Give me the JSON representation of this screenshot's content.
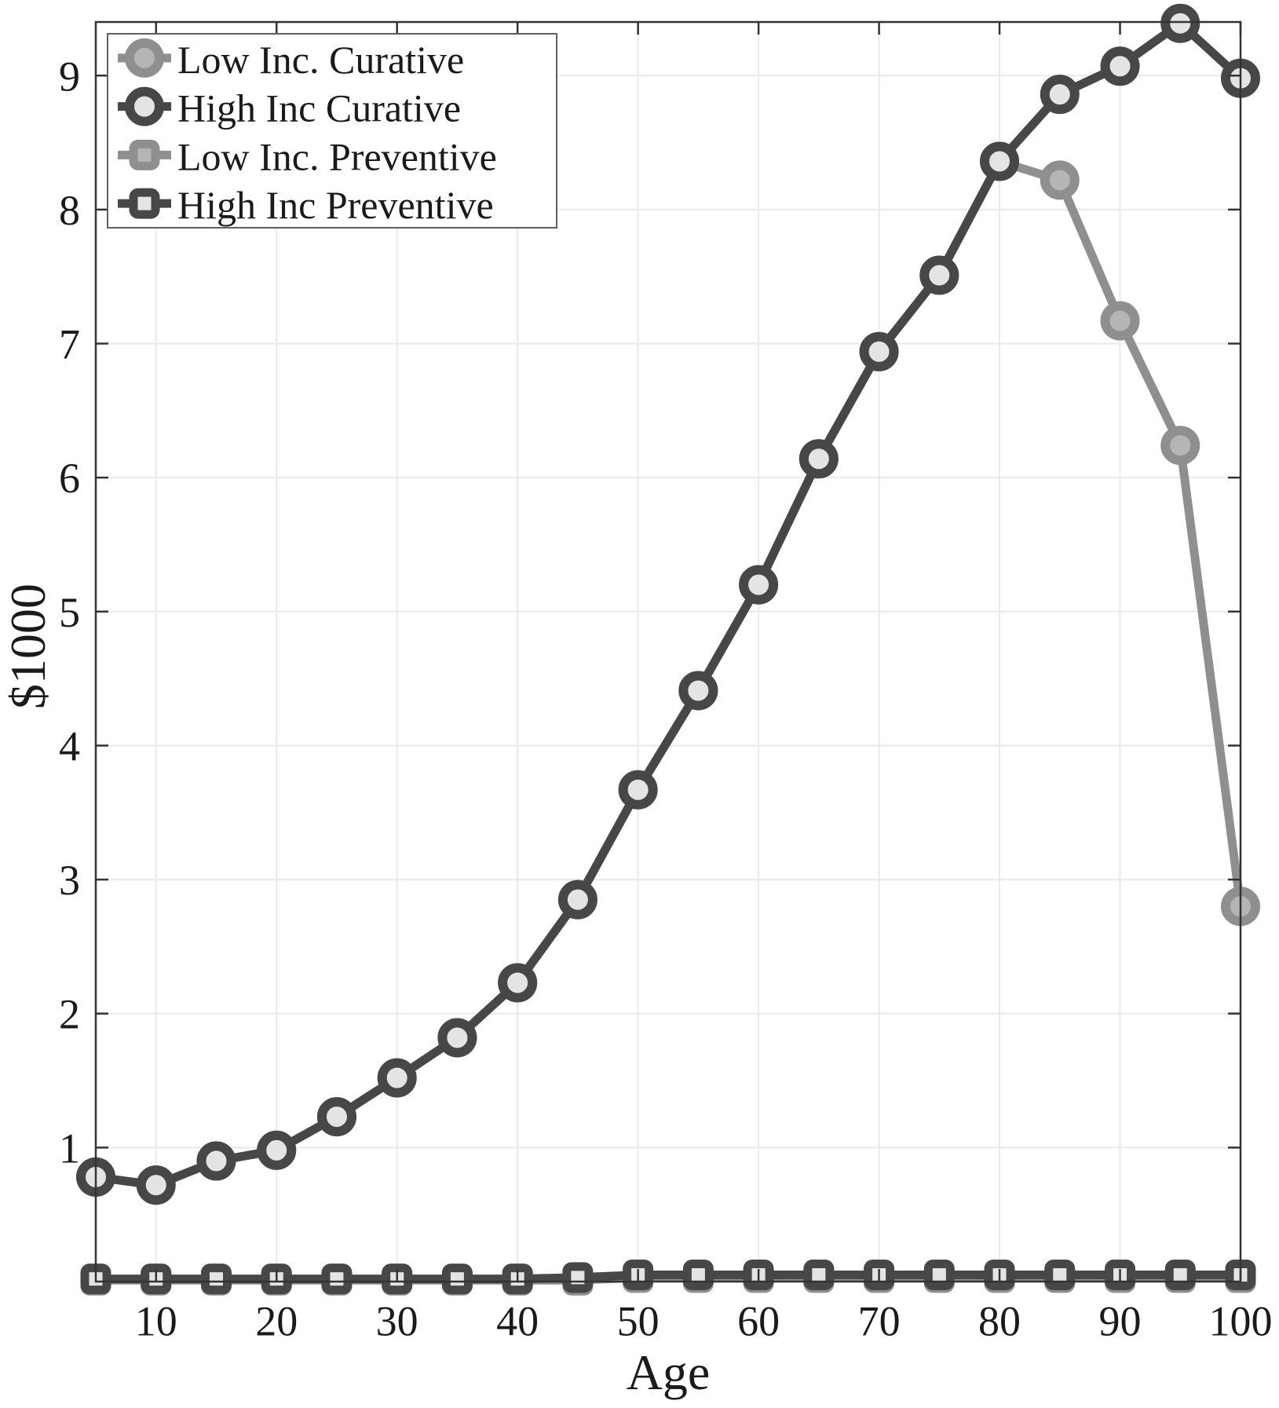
{
  "chart_data": {
    "type": "line",
    "title": "",
    "xlabel": "Age",
    "ylabel": "$1000",
    "xlim": [
      5,
      100
    ],
    "ylim": [
      0,
      9.4
    ],
    "xticks": [
      10,
      20,
      30,
      40,
      50,
      60,
      70,
      80,
      90,
      100
    ],
    "yticks": [
      1,
      2,
      3,
      4,
      5,
      6,
      7,
      8,
      9
    ],
    "grid": true,
    "grid_color": "#e9e9e9",
    "frame_color": "#333333",
    "legend_position": "top-left",
    "x": [
      5,
      10,
      15,
      20,
      25,
      30,
      35,
      40,
      45,
      50,
      55,
      60,
      65,
      70,
      75,
      80,
      85,
      90,
      95,
      100
    ],
    "series": [
      {
        "name": "Low Inc. Curative",
        "marker": "circle",
        "line_color": "#8f8f8f",
        "marker_fill": "#b5b5b5",
        "values": [
          0.78,
          0.72,
          0.9,
          0.98,
          1.23,
          1.52,
          1.82,
          2.23,
          2.85,
          3.67,
          4.41,
          5.2,
          6.14,
          6.94,
          7.51,
          8.36,
          8.22,
          7.17,
          6.24,
          2.8
        ]
      },
      {
        "name": "High Inc Curative",
        "marker": "circle",
        "line_color": "#474747",
        "marker_fill": "#e4e4e4",
        "values": [
          0.78,
          0.72,
          0.9,
          0.98,
          1.23,
          1.52,
          1.82,
          2.23,
          2.85,
          3.67,
          4.41,
          5.2,
          6.14,
          6.94,
          7.51,
          8.36,
          8.86,
          9.07,
          9.39,
          8.98
        ]
      },
      {
        "name": "Low Inc. Preventive",
        "marker": "square",
        "line_color": "#8f8f8f",
        "marker_fill": "#b5b5b5",
        "values": [
          0.01,
          0.01,
          0.01,
          0.01,
          0.01,
          0.01,
          0.01,
          0.01,
          0.01,
          0.03,
          0.03,
          0.03,
          0.03,
          0.03,
          0.03,
          0.03,
          0.03,
          0.03,
          0.03,
          0.03
        ]
      },
      {
        "name": "High Inc Preventive",
        "marker": "square",
        "line_color": "#474747",
        "marker_fill": "#e4e4e4",
        "values": [
          0.02,
          0.02,
          0.02,
          0.02,
          0.02,
          0.02,
          0.02,
          0.02,
          0.03,
          0.05,
          0.05,
          0.05,
          0.05,
          0.05,
          0.05,
          0.05,
          0.05,
          0.05,
          0.05,
          0.05
        ]
      }
    ]
  },
  "legend": {
    "items": [
      "Low Inc. Curative",
      "High Inc Curative",
      "Low Inc. Preventive",
      "High Inc Preventive"
    ]
  }
}
